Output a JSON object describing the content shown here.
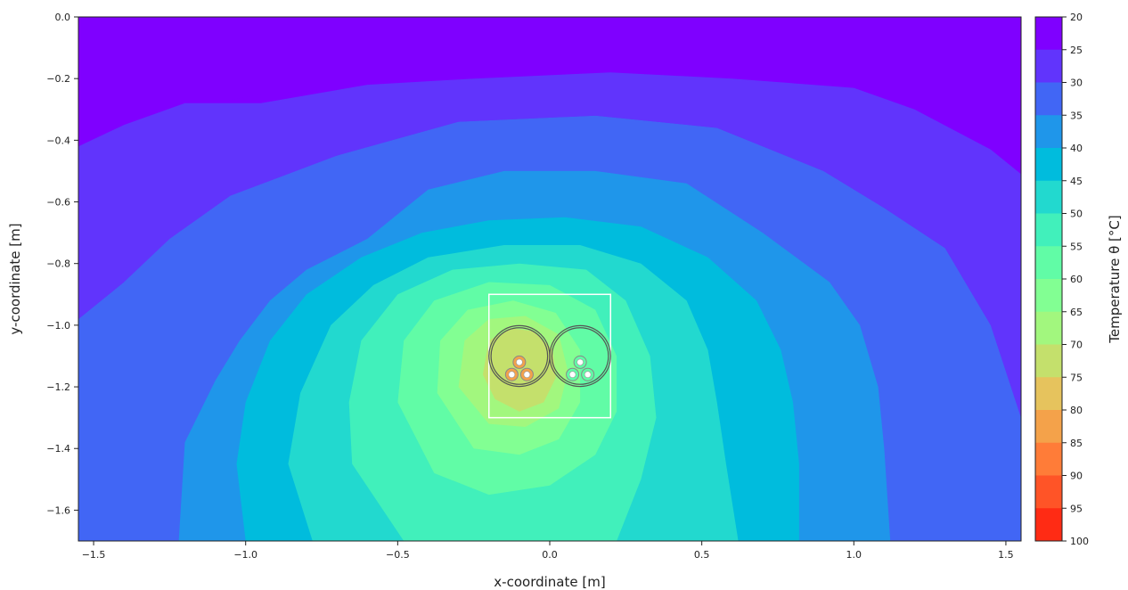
{
  "chart_data": {
    "type": "contour",
    "xlabel": "x-coordinate [m]",
    "ylabel": "y-coordinate [m]",
    "xlim": [
      -1.55,
      1.55
    ],
    "ylim": [
      -1.7,
      0.0
    ],
    "x_ticks": [
      -1.5,
      -1.0,
      -0.5,
      0.0,
      0.5,
      1.0,
      1.5
    ],
    "x_tick_labels": [
      "−1.5",
      "−1.0",
      "−0.5",
      "0.0",
      "0.5",
      "1.0",
      "1.5"
    ],
    "y_ticks": [
      0.0,
      -0.2,
      -0.4,
      -0.6,
      -0.8,
      -1.0,
      -1.2,
      -1.4,
      -1.6
    ],
    "y_tick_labels": [
      "0.0",
      "−0.2",
      "−0.4",
      "−0.6",
      "−0.8",
      "−1.0",
      "−1.2",
      "−1.4",
      "−1.6"
    ],
    "colorbar": {
      "label": "Temperature θ [°C]",
      "levels": [
        20,
        25,
        30,
        35,
        40,
        45,
        50,
        55,
        60,
        65,
        70,
        75,
        80,
        85,
        90,
        95,
        100
      ],
      "tick_labels": [
        "20",
        "25",
        "30",
        "35",
        "40",
        "45",
        "50",
        "55",
        "60",
        "65",
        "70",
        "75",
        "80",
        "85",
        "90",
        "95",
        "100"
      ],
      "colors": [
        "#7f00ff",
        "#6134fc",
        "#4166f5",
        "#1f96ea",
        "#00bcdd",
        "#22d9cf",
        "#41f0bb",
        "#61fca6",
        "#82ff93",
        "#a2f77e",
        "#c4e06c",
        "#e6c35d",
        "#f4a24a",
        "#ff7c38",
        "#ff5427",
        "#ff2b14",
        "#ff0000"
      ]
    },
    "contour_field": {
      "description": "Temperature field, hottest at the left cable group, decreasing outward to the ground surface (20 °C at top).",
      "contours": [
        {
          "level": 20,
          "points": [
            [
              -1.55,
              0.0
            ],
            [
              1.55,
              0.0
            ],
            [
              1.55,
              -0.51
            ],
            [
              1.45,
              -0.43
            ],
            [
              1.2,
              -0.3
            ],
            [
              1.0,
              -0.23
            ],
            [
              0.6,
              -0.2
            ],
            [
              0.2,
              -0.18
            ],
            [
              -0.25,
              -0.2
            ],
            [
              -0.6,
              -0.23
            ],
            [
              -0.95,
              -0.25
            ],
            [
              -1.2,
              -0.3
            ],
            [
              -1.4,
              -0.35
            ],
            [
              -1.55,
              -0.42
            ]
          ]
        },
        {
          "level": 25,
          "points": [
            [
              -1.55,
              -0.42
            ],
            [
              -1.4,
              -0.35
            ],
            [
              -1.2,
              -0.28
            ],
            [
              -0.95,
              -0.28
            ],
            [
              -0.6,
              -0.22
            ],
            [
              -0.25,
              -0.2
            ],
            [
              0.2,
              -0.18
            ],
            [
              0.6,
              -0.2
            ],
            [
              1.0,
              -0.23
            ],
            [
              1.2,
              -0.3
            ],
            [
              1.45,
              -0.43
            ],
            [
              1.55,
              -0.51
            ],
            [
              1.55,
              -1.3
            ],
            [
              1.45,
              -1.0
            ],
            [
              1.3,
              -0.75
            ],
            [
              1.1,
              -0.62
            ],
            [
              0.9,
              -0.5
            ],
            [
              0.55,
              -0.36
            ],
            [
              0.15,
              -0.32
            ],
            [
              -0.3,
              -0.34
            ],
            [
              -0.7,
              -0.45
            ],
            [
              -1.0,
              -0.58
            ],
            [
              -1.25,
              -0.78
            ],
            [
              -1.4,
              -0.86
            ],
            [
              -1.55,
              -0.98
            ]
          ]
        },
        {
          "level": 30,
          "points": [
            [
              -1.55,
              -0.98
            ],
            [
              -1.4,
              -0.86
            ],
            [
              -1.25,
              -0.72
            ],
            [
              -1.05,
              -0.58
            ],
            [
              -0.7,
              -0.45
            ],
            [
              -0.3,
              -0.34
            ],
            [
              0.15,
              -0.32
            ],
            [
              0.55,
              -0.36
            ],
            [
              0.9,
              -0.5
            ],
            [
              1.1,
              -0.62
            ],
            [
              1.3,
              -0.75
            ],
            [
              1.45,
              -1.0
            ],
            [
              1.55,
              -1.3
            ],
            [
              1.55,
              -1.7
            ],
            [
              -1.55,
              -1.7
            ]
          ]
        },
        {
          "level": 35,
          "points": [
            [
              -1.22,
              -1.7
            ],
            [
              -1.2,
              -1.38
            ],
            [
              -1.1,
              -1.18
            ],
            [
              -1.02,
              -1.05
            ],
            [
              -0.92,
              -0.92
            ],
            [
              -0.8,
              -0.82
            ],
            [
              -0.6,
              -0.72
            ],
            [
              -0.4,
              -0.56
            ],
            [
              -0.15,
              -0.5
            ],
            [
              0.15,
              -0.5
            ],
            [
              0.45,
              -0.54
            ],
            [
              0.7,
              -0.7
            ],
            [
              0.92,
              -0.86
            ],
            [
              1.02,
              -1.0
            ],
            [
              1.08,
              -1.2
            ],
            [
              1.1,
              -1.4
            ],
            [
              1.12,
              -1.7
            ]
          ]
        },
        {
          "level": 40,
          "points": [
            [
              -1.0,
              -1.7
            ],
            [
              -1.03,
              -1.45
            ],
            [
              -1.0,
              -1.25
            ],
            [
              -0.92,
              -1.05
            ],
            [
              -0.8,
              -0.9
            ],
            [
              -0.62,
              -0.78
            ],
            [
              -0.42,
              -0.7
            ],
            [
              -0.2,
              -0.66
            ],
            [
              0.05,
              -0.65
            ],
            [
              0.3,
              -0.68
            ],
            [
              0.52,
              -0.78
            ],
            [
              0.68,
              -0.92
            ],
            [
              0.76,
              -1.08
            ],
            [
              0.8,
              -1.25
            ],
            [
              0.82,
              -1.45
            ],
            [
              0.82,
              -1.7
            ]
          ]
        },
        {
          "level": 45,
          "points": [
            [
              -0.78,
              -1.7
            ],
            [
              -0.86,
              -1.45
            ],
            [
              -0.82,
              -1.22
            ],
            [
              -0.72,
              -1.0
            ],
            [
              -0.58,
              -0.87
            ],
            [
              -0.4,
              -0.78
            ],
            [
              -0.15,
              -0.74
            ],
            [
              0.1,
              -0.74
            ],
            [
              0.3,
              -0.8
            ],
            [
              0.45,
              -0.92
            ],
            [
              0.52,
              -1.08
            ],
            [
              0.55,
              -1.25
            ],
            [
              0.58,
              -1.45
            ],
            [
              0.62,
              -1.7
            ]
          ]
        },
        {
          "level": 50,
          "points": [
            [
              -0.48,
              -1.7
            ],
            [
              -0.65,
              -1.45
            ],
            [
              -0.66,
              -1.25
            ],
            [
              -0.62,
              -1.05
            ],
            [
              -0.5,
              -0.9
            ],
            [
              -0.32,
              -0.82
            ],
            [
              -0.1,
              -0.8
            ],
            [
              0.12,
              -0.82
            ],
            [
              0.25,
              -0.92
            ],
            [
              0.33,
              -1.1
            ],
            [
              0.35,
              -1.3
            ],
            [
              0.3,
              -1.5
            ],
            [
              0.22,
              -1.7
            ]
          ]
        },
        {
          "level": 55,
          "points": [
            [
              -0.5,
              -1.25
            ],
            [
              -0.48,
              -1.05
            ],
            [
              -0.38,
              -0.92
            ],
            [
              -0.2,
              -0.86
            ],
            [
              0.0,
              -0.87
            ],
            [
              0.15,
              -0.95
            ],
            [
              0.22,
              -1.1
            ],
            [
              0.22,
              -1.28
            ],
            [
              0.15,
              -1.42
            ],
            [
              0.0,
              -1.52
            ],
            [
              -0.2,
              -1.55
            ],
            [
              -0.38,
              -1.48
            ]
          ]
        },
        {
          "level": 60,
          "points": [
            [
              -0.37,
              -1.22
            ],
            [
              -0.36,
              -1.05
            ],
            [
              -0.27,
              -0.95
            ],
            [
              -0.12,
              -0.92
            ],
            [
              0.02,
              -0.96
            ],
            [
              0.1,
              -1.08
            ],
            [
              0.1,
              -1.25
            ],
            [
              0.03,
              -1.37
            ],
            [
              -0.1,
              -1.42
            ],
            [
              -0.25,
              -1.4
            ]
          ]
        },
        {
          "level": 65,
          "points": [
            [
              -0.3,
              -1.2
            ],
            [
              -0.28,
              -1.05
            ],
            [
              -0.2,
              -0.98
            ],
            [
              -0.08,
              -0.97
            ],
            [
              0.03,
              -1.03
            ],
            [
              0.06,
              -1.15
            ],
            [
              0.03,
              -1.27
            ],
            [
              -0.08,
              -1.33
            ],
            [
              -0.2,
              -1.32
            ]
          ]
        },
        {
          "level": 70,
          "points": [
            [
              -0.22,
              -1.16
            ],
            [
              -0.2,
              -1.05
            ],
            [
              -0.13,
              -1.01
            ],
            [
              -0.05,
              -1.02
            ],
            [
              0.01,
              -1.08
            ],
            [
              0.02,
              -1.17
            ],
            [
              -0.02,
              -1.25
            ],
            [
              -0.1,
              -1.28
            ],
            [
              -0.18,
              -1.24
            ]
          ]
        }
      ]
    },
    "overlay": {
      "box": {
        "x": [
          -0.2,
          0.2
        ],
        "y": [
          -1.3,
          -0.9
        ],
        "color": "#ffffff"
      },
      "cables": [
        {
          "center": [
            -0.1,
            -1.1
          ],
          "outer_radius": 0.1,
          "inner_radius": 0.093,
          "color": "#555555",
          "conductors": [
            [
              -0.1,
              -1.12
            ],
            [
              -0.125,
              -1.16
            ],
            [
              -0.075,
              -1.16
            ]
          ],
          "conductor_color": "#f4a24a"
        },
        {
          "center": [
            0.1,
            -1.1
          ],
          "outer_radius": 0.1,
          "inner_radius": 0.093,
          "color": "#555555",
          "conductors": [
            [
              0.1,
              -1.12
            ],
            [
              0.075,
              -1.16
            ],
            [
              0.125,
              -1.16
            ]
          ],
          "conductor_color": "#61fca6"
        }
      ]
    }
  }
}
